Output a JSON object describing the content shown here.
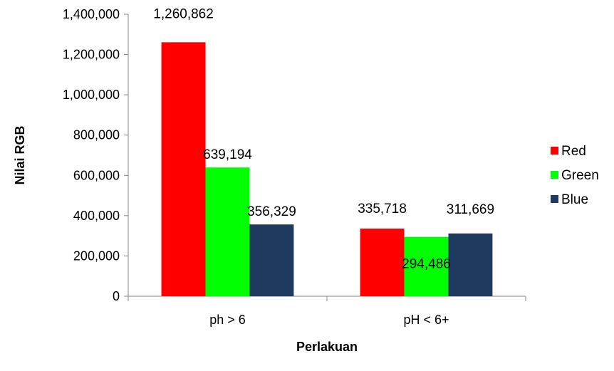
{
  "chart_data": {
    "type": "bar",
    "title": "",
    "xlabel": "Perlakuan",
    "ylabel": "Nilai RGB",
    "categories": [
      "ph > 6",
      "pH < 6+"
    ],
    "series": [
      {
        "name": "Red",
        "color": "#ff0000",
        "values": [
          1260862,
          335718
        ],
        "labels": [
          "1,260,862",
          "335,718"
        ]
      },
      {
        "name": "Green",
        "color": "#00ff00",
        "values": [
          639194,
          294486
        ],
        "labels": [
          "639,194",
          "294,486"
        ]
      },
      {
        "name": "Blue",
        "color": "#1f3a5f",
        "values": [
          356329,
          311669
        ],
        "labels": [
          "356,329",
          "311,669"
        ]
      }
    ],
    "ylim": [
      0,
      1400000
    ],
    "yticks": [
      "0",
      "200,000",
      "400,000",
      "600,000",
      "800,000",
      "1,000,000",
      "1,200,000",
      "1,400,000"
    ],
    "grid": false,
    "legend_position": "right"
  }
}
